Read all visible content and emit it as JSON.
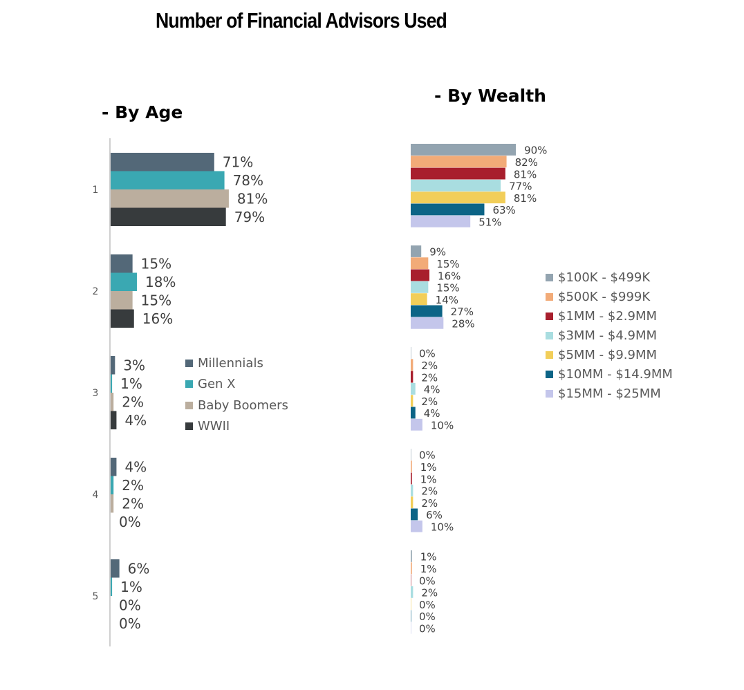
{
  "title": "Number of Financial Advisors Used",
  "chart_data": [
    {
      "type": "bar",
      "orientation": "horizontal",
      "subtitle": "- By Age",
      "categories": [
        "1",
        "2",
        "3",
        "4",
        "5"
      ],
      "series": [
        {
          "name": "Millennials",
          "color": "#536878",
          "values": [
            71,
            15,
            3,
            4,
            6
          ]
        },
        {
          "name": "Gen X",
          "color": "#3AA8B2",
          "values": [
            78,
            18,
            1,
            2,
            1
          ]
        },
        {
          "name": "Baby Boomers",
          "color": "#BBAE9E",
          "values": [
            81,
            15,
            2,
            2,
            0
          ]
        },
        {
          "name": "WWII",
          "color": "#373B3D",
          "values": [
            79,
            16,
            4,
            0,
            0
          ]
        }
      ],
      "value_suffix": "%",
      "legend_position": "right",
      "grid": false
    },
    {
      "type": "bar",
      "orientation": "horizontal",
      "subtitle": "- By Wealth",
      "categories": [
        "1",
        "2",
        "3",
        "4",
        "5"
      ],
      "series": [
        {
          "name": "$100K - $499K",
          "color": "#93A4B0",
          "values": [
            90,
            9,
            0,
            0,
            1
          ]
        },
        {
          "name": "$500K - $999K",
          "color": "#F2AB78",
          "values": [
            82,
            15,
            2,
            1,
            1
          ]
        },
        {
          "name": "$1MM - $2.9MM",
          "color": "#A81F2D",
          "values": [
            81,
            16,
            2,
            1,
            0
          ]
        },
        {
          "name": "$3MM - $4.9MM",
          "color": "#A9DDE0",
          "values": [
            77,
            15,
            4,
            2,
            2
          ]
        },
        {
          "name": "$5MM - $9.9MM",
          "color": "#F2CE59",
          "values": [
            81,
            14,
            2,
            2,
            0
          ]
        },
        {
          "name": "$10MM - $14.9MM",
          "color": "#0C6486",
          "values": [
            63,
            27,
            4,
            6,
            0
          ]
        },
        {
          "name": "$15MM - $25MM",
          "color": "#C4C6EB",
          "values": [
            51,
            28,
            10,
            10,
            0
          ]
        }
      ],
      "value_suffix": "%",
      "legend_position": "right",
      "grid": false
    }
  ]
}
